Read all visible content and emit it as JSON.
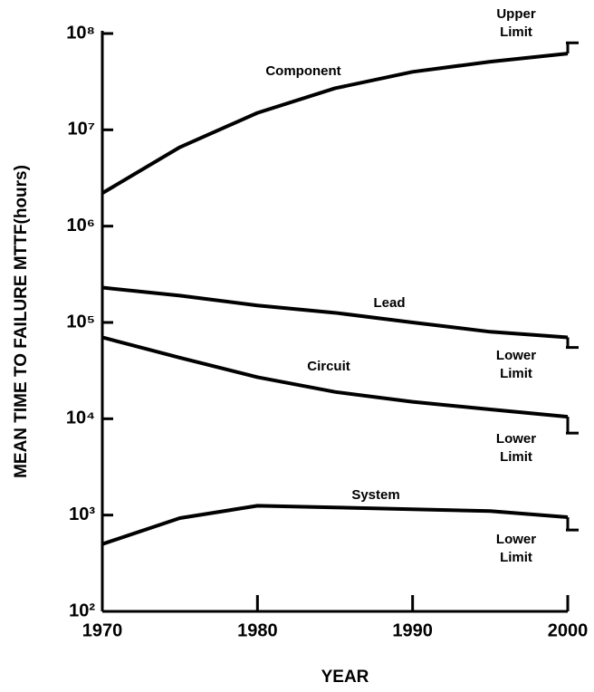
{
  "chart_data": {
    "type": "line",
    "log_y": true,
    "x_label": "YEAR",
    "y_label": "MEAN TIME TO FAILURE MTTF(hours)",
    "x": [
      1970,
      1975,
      1980,
      1985,
      1990,
      1995,
      2000
    ],
    "series": [
      {
        "name": "Component",
        "color": "#000000",
        "values": [
          2200000,
          6600000,
          15000000,
          27000000,
          40000000,
          51000000,
          62000000
        ],
        "limit_label": [
          "Upper",
          "Limit"
        ],
        "limit": 80000000
      },
      {
        "name": "Lead",
        "color": "#000000",
        "values": [
          230000,
          190000,
          150000,
          126000,
          100000,
          80000,
          70000
        ],
        "limit_label": [
          "Lower",
          "Limit"
        ],
        "limit": 55000
      },
      {
        "name": "Circuit",
        "color": "#000000",
        "values": [
          70000,
          43000,
          27000,
          19000,
          15000,
          12500,
          10500
        ],
        "limit_label": [
          "Lower",
          "Limit"
        ],
        "limit": 7100
      },
      {
        "name": "System",
        "color": "#000000",
        "values": [
          500,
          930,
          1250,
          1200,
          1150,
          1100,
          950
        ],
        "limit_label": [
          "Lower",
          "Limit"
        ],
        "limit": 700
      }
    ],
    "xlim": [
      1970,
      2000
    ],
    "xticks": [
      1970,
      1980,
      1990,
      2000
    ],
    "ylim": [
      100,
      100000000
    ],
    "yticks": [
      {
        "value": 100,
        "label": "10²"
      },
      {
        "value": 1000,
        "label": "10³"
      },
      {
        "value": 10000,
        "label": "10⁴"
      },
      {
        "value": 100000,
        "label": "10⁵"
      },
      {
        "value": 1000000,
        "label": "10⁶"
      },
      {
        "value": 10000000,
        "label": "10⁷"
      },
      {
        "value": 100000000,
        "label": "10⁸"
      }
    ]
  }
}
